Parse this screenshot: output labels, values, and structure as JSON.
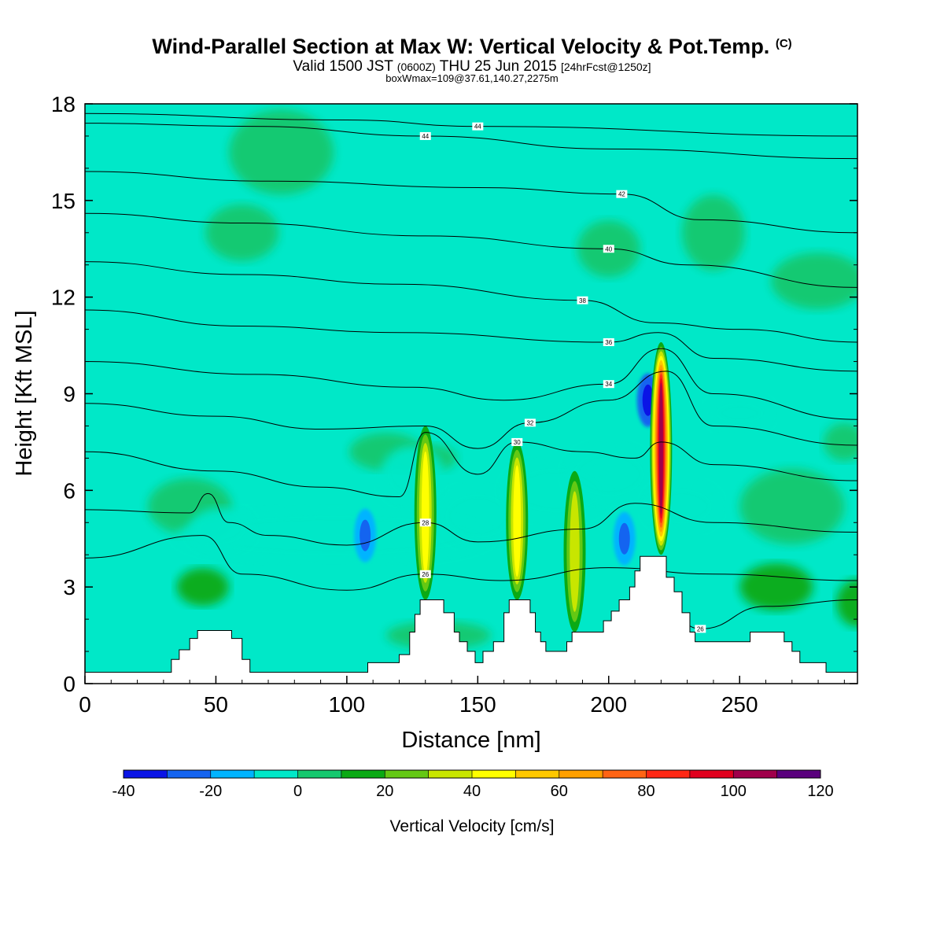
{
  "header": {
    "title": "Wind-Parallel Section at Max W: Vertical Velocity & Pot.Temp.",
    "copyright": "(C)",
    "valid_prefix": "Valid 1500 JST",
    "valid_utc": "(0600Z)",
    "valid_date": "THU 25 Jun 2015",
    "forecast": "[24hrFcst@1250z]",
    "box_info": "boxWmax=109@37.61,140.27,2275m"
  },
  "chart_data": {
    "type": "heatmap",
    "xlabel": "Distance [nm]",
    "ylabel": "Height [Kft MSL]",
    "xlim": [
      0,
      295
    ],
    "ylim": [
      0,
      18
    ],
    "xticks": [
      "0",
      "50",
      "100",
      "150",
      "200",
      "250"
    ],
    "yticks": [
      "0",
      "3",
      "6",
      "9",
      "12",
      "15",
      "18"
    ],
    "background_color": "#00e8c8",
    "colorbar": {
      "label": "Vertical Velocity [cm/s]",
      "tick_labels": [
        "-40",
        "-20",
        "0",
        "20",
        "40",
        "60",
        "80",
        "100",
        "120"
      ],
      "levels": [
        -40,
        -30,
        -20,
        -10,
        0,
        10,
        20,
        30,
        40,
        50,
        60,
        70,
        80,
        90,
        100,
        110,
        120
      ],
      "colors": [
        "#0a14e6",
        "#1464f0",
        "#00b4ff",
        "#00e8c8",
        "#14c86e",
        "#0aaa14",
        "#64c814",
        "#c8e600",
        "#ffff00",
        "#ffc800",
        "#ffa000",
        "#ff6414",
        "#ff2814",
        "#e1001e",
        "#a0004b",
        "#5a007d"
      ]
    },
    "terrain_kft": [
      [
        0,
        0.35
      ],
      [
        30,
        0.35
      ],
      [
        33,
        0.75
      ],
      [
        36,
        1.05
      ],
      [
        40,
        1.4
      ],
      [
        43,
        1.65
      ],
      [
        53,
        1.65
      ],
      [
        56,
        1.4
      ],
      [
        60,
        0.75
      ],
      [
        63,
        0.35
      ],
      [
        97,
        0.35
      ],
      [
        100,
        0.35
      ],
      [
        103,
        0.35
      ],
      [
        107,
        0.35
      ],
      [
        108,
        0.65
      ],
      [
        118,
        0.65
      ],
      [
        120,
        0.9
      ],
      [
        124,
        1.6
      ],
      [
        126,
        2.15
      ],
      [
        128,
        2.6
      ],
      [
        135,
        2.6
      ],
      [
        137,
        2.2
      ],
      [
        141,
        1.6
      ],
      [
        143,
        1.3
      ],
      [
        146,
        1.0
      ],
      [
        149,
        0.65
      ],
      [
        152,
        1.0
      ],
      [
        156,
        1.3
      ],
      [
        160,
        2.2
      ],
      [
        162,
        2.6
      ],
      [
        168,
        2.6
      ],
      [
        170,
        2.2
      ],
      [
        172,
        1.6
      ],
      [
        174,
        1.3
      ],
      [
        176,
        1.0
      ],
      [
        184,
        1.3
      ],
      [
        186,
        1.6
      ],
      [
        196,
        1.6
      ],
      [
        198,
        1.95
      ],
      [
        201,
        2.25
      ],
      [
        204,
        2.6
      ],
      [
        208,
        3.0
      ],
      [
        210,
        3.5
      ],
      [
        212,
        3.95
      ],
      [
        219,
        3.95
      ],
      [
        222,
        3.3
      ],
      [
        225,
        2.85
      ],
      [
        228,
        2.2
      ],
      [
        231,
        1.6
      ],
      [
        233,
        1.3
      ],
      [
        252,
        1.3
      ],
      [
        254,
        1.6
      ],
      [
        264,
        1.6
      ],
      [
        267,
        1.3
      ],
      [
        270,
        1.0
      ],
      [
        273,
        0.65
      ],
      [
        280,
        0.65
      ],
      [
        283,
        0.35
      ],
      [
        295,
        0.35
      ]
    ],
    "updrafts": [
      {
        "x": 130,
        "z_base": 2.6,
        "z_top": 8.0,
        "w_max": 50
      },
      {
        "x": 165,
        "z_base": 2.6,
        "z_top": 7.5,
        "w_max": 50
      },
      {
        "x": 187,
        "z_base": 1.6,
        "z_top": 6.6,
        "w_max": 40
      },
      {
        "x": 220,
        "z_base": 4.0,
        "z_top": 10.6,
        "w_max": 109
      }
    ],
    "downdrafts": [
      {
        "x": 107,
        "z": 4.6,
        "w_min": -30
      },
      {
        "x": 206,
        "z": 4.5,
        "w_min": -30
      },
      {
        "x": 215,
        "z": 8.8,
        "w_min": -40
      }
    ],
    "theta_contours": [
      {
        "label": "44",
        "points": [
          [
            0,
            17.4
          ],
          [
            65,
            17.3
          ],
          [
            130,
            17.0
          ],
          [
            200,
            16.6
          ],
          [
            295,
            16.3
          ]
        ]
      },
      {
        "label": "44",
        "points": [
          [
            0,
            17.7
          ],
          [
            100,
            17.5
          ],
          [
            150,
            17.3
          ],
          [
            295,
            17.0
          ]
        ]
      },
      {
        "label": "42",
        "points": [
          [
            0,
            15.9
          ],
          [
            70,
            15.6
          ],
          [
            150,
            15.4
          ],
          [
            205,
            15.2
          ],
          [
            235,
            14.4
          ],
          [
            295,
            14.0
          ]
        ]
      },
      {
        "label": "40",
        "points": [
          [
            0,
            14.6
          ],
          [
            60,
            14.3
          ],
          [
            130,
            13.9
          ],
          [
            200,
            13.5
          ],
          [
            230,
            13.0
          ],
          [
            295,
            12.3
          ]
        ]
      },
      {
        "label": "38",
        "points": [
          [
            0,
            13.1
          ],
          [
            60,
            12.7
          ],
          [
            120,
            12.4
          ],
          [
            190,
            11.9
          ],
          [
            218,
            11.2
          ],
          [
            250,
            11.0
          ],
          [
            295,
            10.6
          ]
        ]
      },
      {
        "label": "36",
        "points": [
          [
            0,
            11.6
          ],
          [
            60,
            11.1
          ],
          [
            120,
            10.9
          ],
          [
            200,
            10.6
          ],
          [
            219,
            10.9
          ],
          [
            240,
            10.1
          ],
          [
            295,
            9.7
          ]
        ]
      },
      {
        "label": "34",
        "points": [
          [
            0,
            10.0
          ],
          [
            65,
            9.6
          ],
          [
            125,
            9.2
          ],
          [
            160,
            8.8
          ],
          [
            200,
            9.3
          ],
          [
            220,
            10.4
          ],
          [
            240,
            9.0
          ],
          [
            295,
            8.2
          ]
        ]
      },
      {
        "label": "32",
        "points": [
          [
            0,
            8.7
          ],
          [
            50,
            8.3
          ],
          [
            90,
            7.9
          ],
          [
            130,
            8.0
          ],
          [
            150,
            7.3
          ],
          [
            170,
            8.1
          ],
          [
            200,
            8.8
          ],
          [
            222,
            9.7
          ],
          [
            240,
            8.0
          ],
          [
            295,
            7.4
          ]
        ]
      },
      {
        "label": "30",
        "points": [
          [
            0,
            7.2
          ],
          [
            50,
            6.6
          ],
          [
            90,
            6.1
          ],
          [
            120,
            5.8
          ],
          [
            130,
            7.8
          ],
          [
            150,
            6.5
          ],
          [
            165,
            7.5
          ],
          [
            190,
            7.2
          ],
          [
            210,
            7.0
          ],
          [
            220,
            7.5
          ],
          [
            240,
            6.8
          ],
          [
            295,
            6.3
          ]
        ]
      },
      {
        "label": "28",
        "points": [
          [
            0,
            5.4
          ],
          [
            40,
            5.3
          ],
          [
            47,
            5.9
          ],
          [
            55,
            5.0
          ],
          [
            70,
            4.6
          ],
          [
            100,
            4.3
          ],
          [
            130,
            5.0
          ],
          [
            150,
            4.4
          ],
          [
            190,
            4.8
          ],
          [
            210,
            5.6
          ],
          [
            240,
            5.0
          ],
          [
            295,
            4.7
          ]
        ]
      },
      {
        "label": "26",
        "points": [
          [
            0,
            3.9
          ],
          [
            45,
            4.6
          ],
          [
            60,
            3.4
          ],
          [
            100,
            2.9
          ],
          [
            130,
            3.4
          ],
          [
            160,
            3.2
          ],
          [
            200,
            3.6
          ],
          [
            240,
            3.4
          ],
          [
            295,
            3.2
          ]
        ]
      },
      {
        "label": "26",
        "points": [
          [
            210,
            2.8
          ],
          [
            225,
            2.0
          ],
          [
            235,
            1.7
          ],
          [
            260,
            2.4
          ],
          [
            295,
            2.6
          ]
        ]
      }
    ]
  }
}
